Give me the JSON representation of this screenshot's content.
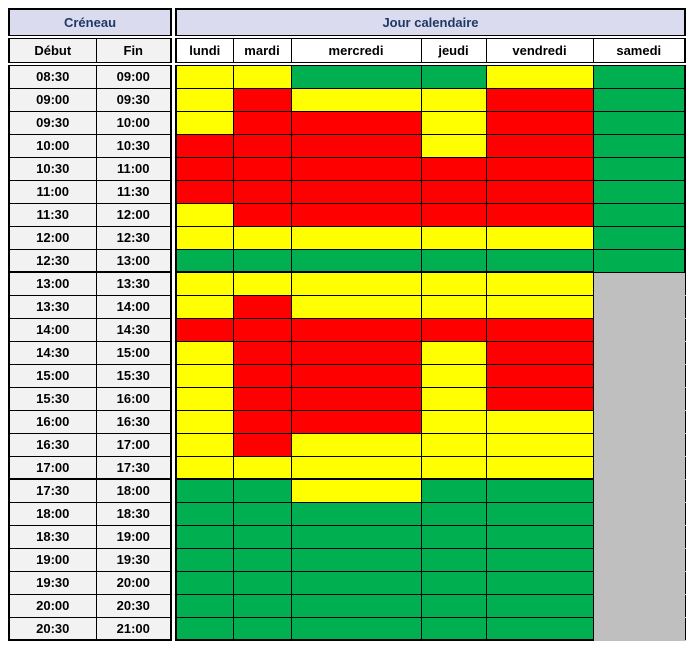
{
  "header": {
    "creneau_label": "Créneau",
    "jour_label": "Jour calendaire",
    "debut_label": "Début",
    "fin_label": "Fin",
    "days": [
      "lundi",
      "mardi",
      "mercredi",
      "jeudi",
      "vendredi",
      "samedi"
    ]
  },
  "colors": {
    "header_band_bg": "#DBDBF0",
    "header_band_text": "#1F3864",
    "subheader_bg": "#F2F2F2",
    "day_header_bg": "#FFFFFF",
    "time_cell_bg": "#F2F2F2",
    "grid_line": "#000000",
    "page_bg": "#FFFFFF"
  },
  "color_codes": {
    "Y": "#FFFF00",
    "R": "#FF0000",
    "G": "#00B050",
    "X": "#BFBFBF"
  },
  "rows": [
    {
      "debut": "08:30",
      "fin": "09:00",
      "cells": [
        "Y",
        "Y",
        "G",
        "G",
        "Y",
        "G"
      ]
    },
    {
      "debut": "09:00",
      "fin": "09:30",
      "cells": [
        "Y",
        "R",
        "Y",
        "Y",
        "R",
        "G"
      ]
    },
    {
      "debut": "09:30",
      "fin": "10:00",
      "cells": [
        "Y",
        "R",
        "R",
        "Y",
        "R",
        "G"
      ]
    },
    {
      "debut": "10:00",
      "fin": "10:30",
      "cells": [
        "R",
        "R",
        "R",
        "Y",
        "R",
        "G"
      ]
    },
    {
      "debut": "10:30",
      "fin": "11:00",
      "cells": [
        "R",
        "R",
        "R",
        "R",
        "R",
        "G"
      ]
    },
    {
      "debut": "11:00",
      "fin": "11:30",
      "cells": [
        "R",
        "R",
        "R",
        "R",
        "R",
        "G"
      ]
    },
    {
      "debut": "11:30",
      "fin": "12:00",
      "cells": [
        "Y",
        "R",
        "R",
        "R",
        "R",
        "G"
      ]
    },
    {
      "debut": "12:00",
      "fin": "12:30",
      "cells": [
        "Y",
        "Y",
        "Y",
        "Y",
        "Y",
        "G"
      ]
    },
    {
      "debut": "12:30",
      "fin": "13:00",
      "cells": [
        "G",
        "G",
        "G",
        "G",
        "G",
        "G"
      ]
    },
    {
      "debut": "13:00",
      "fin": "13:30",
      "cells": [
        "Y",
        "Y",
        "Y",
        "Y",
        "Y",
        "X"
      ],
      "separator_above": true
    },
    {
      "debut": "13:30",
      "fin": "14:00",
      "cells": [
        "Y",
        "R",
        "Y",
        "Y",
        "Y",
        "X"
      ]
    },
    {
      "debut": "14:00",
      "fin": "14:30",
      "cells": [
        "R",
        "R",
        "R",
        "R",
        "R",
        "X"
      ]
    },
    {
      "debut": "14:30",
      "fin": "15:00",
      "cells": [
        "Y",
        "R",
        "R",
        "Y",
        "R",
        "X"
      ]
    },
    {
      "debut": "15:00",
      "fin": "15:30",
      "cells": [
        "Y",
        "R",
        "R",
        "Y",
        "R",
        "X"
      ]
    },
    {
      "debut": "15:30",
      "fin": "16:00",
      "cells": [
        "Y",
        "R",
        "R",
        "Y",
        "R",
        "X"
      ]
    },
    {
      "debut": "16:00",
      "fin": "16:30",
      "cells": [
        "Y",
        "R",
        "R",
        "Y",
        "Y",
        "X"
      ]
    },
    {
      "debut": "16:30",
      "fin": "17:00",
      "cells": [
        "Y",
        "R",
        "Y",
        "Y",
        "Y",
        "X"
      ]
    },
    {
      "debut": "17:00",
      "fin": "17:30",
      "cells": [
        "Y",
        "Y",
        "Y",
        "Y",
        "Y",
        "X"
      ]
    },
    {
      "debut": "17:30",
      "fin": "18:00",
      "cells": [
        "G",
        "G",
        "Y",
        "G",
        "G",
        "X"
      ],
      "separator_above": true
    },
    {
      "debut": "18:00",
      "fin": "18:30",
      "cells": [
        "G",
        "G",
        "G",
        "G",
        "G",
        "X"
      ]
    },
    {
      "debut": "18:30",
      "fin": "19:00",
      "cells": [
        "G",
        "G",
        "G",
        "G",
        "G",
        "X"
      ]
    },
    {
      "debut": "19:00",
      "fin": "19:30",
      "cells": [
        "G",
        "G",
        "G",
        "G",
        "G",
        "X"
      ]
    },
    {
      "debut": "19:30",
      "fin": "20:00",
      "cells": [
        "G",
        "G",
        "G",
        "G",
        "G",
        "X"
      ]
    },
    {
      "debut": "20:00",
      "fin": "20:30",
      "cells": [
        "G",
        "G",
        "G",
        "G",
        "G",
        "X"
      ]
    },
    {
      "debut": "20:30",
      "fin": "21:00",
      "cells": [
        "G",
        "G",
        "G",
        "G",
        "G",
        "X"
      ]
    }
  ]
}
